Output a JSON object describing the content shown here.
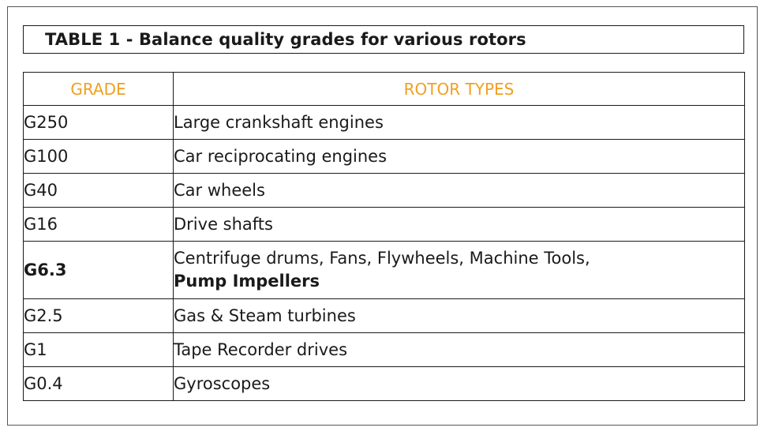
{
  "table": {
    "title": "TABLE  1 - Balance quality grades for various rotors",
    "header": {
      "grade": "GRADE",
      "rotor_types": "ROTOR TYPES"
    },
    "rows": [
      {
        "grade": "G250",
        "rotor": "Large crankshaft engines"
      },
      {
        "grade": "G100",
        "rotor": "Car reciprocating engines"
      },
      {
        "grade": "G40",
        "rotor": "Car wheels"
      },
      {
        "grade": "G16",
        "rotor": "Drive shafts"
      },
      {
        "grade": "G6.3",
        "rotor_line1": "Centrifuge drums, Fans, Flywheels, Machine Tools,",
        "rotor_line2": "Pump Impellers"
      },
      {
        "grade": "G2.5",
        "rotor": "Gas & Steam turbines"
      },
      {
        "grade": "G1",
        "rotor": "Tape Recorder drives"
      },
      {
        "grade": "G0.4",
        "rotor": "Gyroscopes"
      }
    ],
    "colors": {
      "header": "#f0a020",
      "text": "#1a1a1a",
      "border": "#1a1a1a"
    }
  }
}
